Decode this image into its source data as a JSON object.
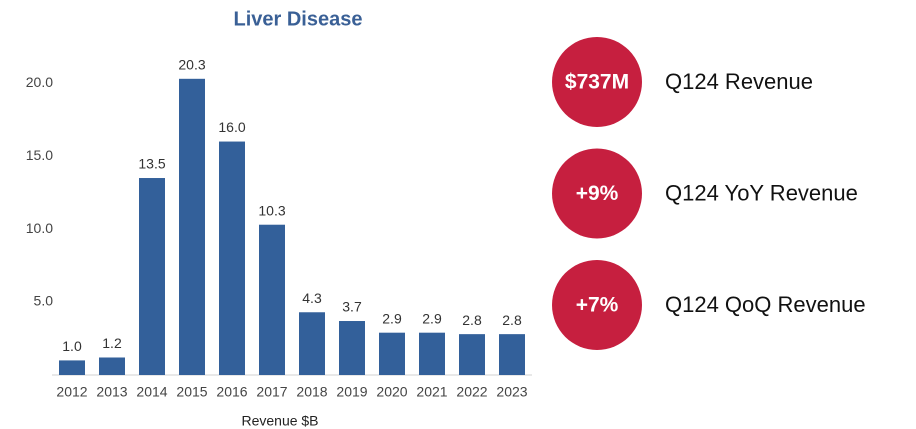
{
  "chart_data": {
    "type": "bar",
    "title": "Liver Disease",
    "x_label": "Revenue $B",
    "categories": [
      "2012",
      "2013",
      "2014",
      "2015",
      "2016",
      "2017",
      "2018",
      "2019",
      "2020",
      "2021",
      "2022",
      "2023"
    ],
    "values": [
      1.0,
      1.2,
      13.5,
      20.3,
      16.0,
      10.3,
      4.3,
      3.7,
      2.9,
      2.9,
      2.8,
      2.8
    ],
    "value_labels": [
      "1.0",
      "1.2",
      "13.5",
      "20.3",
      "16.0",
      "10.3",
      "4.3",
      "3.7",
      "2.9",
      "2.9",
      "2.8",
      "2.8"
    ],
    "color": "#33609a",
    "ylim": [
      0,
      22
    ],
    "yticks": [
      {
        "value": 5,
        "label": "5.0"
      },
      {
        "value": 10,
        "label": "10.0"
      },
      {
        "value": 15,
        "label": "15.0"
      },
      {
        "value": 20,
        "label": "20.0"
      }
    ],
    "grid": false
  },
  "kpis": [
    {
      "value": "$737M",
      "label": "Q124 Revenue"
    },
    {
      "value": "+9%",
      "label": "Q124 YoY Revenue"
    },
    {
      "value": "+7%",
      "label": "Q124 QoQ Revenue"
    }
  ]
}
